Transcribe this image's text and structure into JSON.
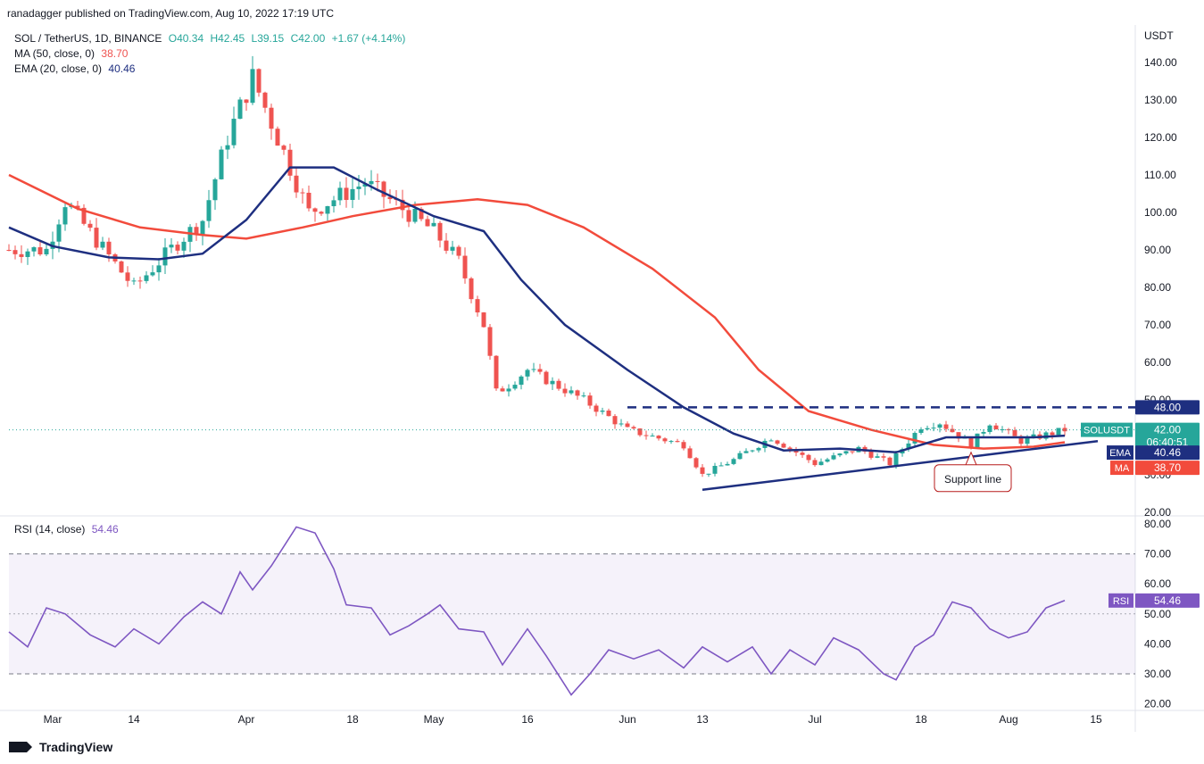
{
  "header": {
    "published": "ranadagger published on TradingView.com, Aug 10, 2022 17:19 UTC",
    "symbol": "SOL / TetherUS, 1D, BINANCE",
    "open": "O40.34",
    "high": "H42.45",
    "low": "L39.15",
    "close": "C42.00",
    "change": "+1.67 (+4.14%)",
    "ma_label": "MA (50, close, 0)",
    "ma_value": "38.70",
    "ema_label": "EMA (20, close, 0)",
    "ema_value": "40.46",
    "rsi_label": "RSI (14, close)",
    "rsi_value": "54.46"
  },
  "price_axis": {
    "unit": "USDT",
    "ticks": [
      "140.00",
      "130.00",
      "120.00",
      "110.00",
      "100.00",
      "90.00",
      "80.00",
      "70.00",
      "60.00",
      "50.00",
      "40.00",
      "30.00",
      "20.00"
    ]
  },
  "rsi_axis": {
    "ticks": [
      "80.00",
      "70.00",
      "60.00",
      "50.00",
      "40.00",
      "30.00",
      "20.00"
    ]
  },
  "date_axis": {
    "ticks": [
      "Mar",
      "14",
      "Apr",
      "18",
      "May",
      "16",
      "Jun",
      "13",
      "Jul",
      "18",
      "Aug",
      "15"
    ]
  },
  "badges": {
    "resistance": "48.00",
    "symbol": "SOLUSDT",
    "last": "42.00",
    "countdown": "06:40:51",
    "ema_tag": "EMA",
    "ema_val": "40.46",
    "ma_tag": "MA",
    "ma_val": "38.70",
    "rsi_tag": "RSI",
    "rsi_val": "54.46"
  },
  "annotation": {
    "support": "Support line"
  },
  "brand": {
    "name": "TradingView"
  },
  "colors": {
    "up": "#26a69a",
    "down": "#ef5350",
    "ema": "#1e2f80",
    "ma": "#f24b3c",
    "rsi": "#7e57c2",
    "resistance": "#1e2f80"
  },
  "chart_data": [
    {
      "type": "candlestick",
      "title": "SOL / TetherUS, 1D, BINANCE",
      "ylabel": "USDT",
      "ylim": [
        18,
        146
      ],
      "x_range": [
        "2022-02-22",
        "2022-08-21"
      ],
      "ohlc_key_points": [
        {
          "date": "2022-02-28",
          "close": 90
        },
        {
          "date": "2022-03-03",
          "close": 103
        },
        {
          "date": "2022-03-14",
          "close": 80
        },
        {
          "date": "2022-03-21",
          "close": 92
        },
        {
          "date": "2022-03-25",
          "close": 98
        },
        {
          "date": "2022-03-29",
          "close": 120
        },
        {
          "date": "2022-04-02",
          "close": 136
        },
        {
          "date": "2022-04-08",
          "close": 112
        },
        {
          "date": "2022-04-11",
          "close": 100
        },
        {
          "date": "2022-04-20",
          "close": 108
        },
        {
          "date": "2022-05-01",
          "close": 95
        },
        {
          "date": "2022-05-05",
          "close": 87
        },
        {
          "date": "2022-05-09",
          "close": 70
        },
        {
          "date": "2022-05-11",
          "close": 52
        },
        {
          "date": "2022-05-13",
          "close": 54
        },
        {
          "date": "2022-05-16",
          "close": 58
        },
        {
          "date": "2022-05-25",
          "close": 50
        },
        {
          "date": "2022-06-01",
          "close": 42
        },
        {
          "date": "2022-06-10",
          "close": 38
        },
        {
          "date": "2022-06-13",
          "close": 30
        },
        {
          "date": "2022-06-18",
          "close": 34
        },
        {
          "date": "2022-06-24",
          "close": 40
        },
        {
          "date": "2022-07-01",
          "close": 33
        },
        {
          "date": "2022-07-08",
          "close": 37
        },
        {
          "date": "2022-07-13",
          "close": 33
        },
        {
          "date": "2022-07-18",
          "close": 43
        },
        {
          "date": "2022-07-21",
          "close": 44
        },
        {
          "date": "2022-07-26",
          "close": 38
        },
        {
          "date": "2022-07-29",
          "close": 44
        },
        {
          "date": "2022-08-03",
          "close": 39
        },
        {
          "date": "2022-08-10",
          "close": 42
        }
      ],
      "series": [
        {
          "name": "EMA (20, close, 0)",
          "last": 40.46
        },
        {
          "name": "MA (50, close, 0)",
          "last": 38.7
        }
      ],
      "resistance": 48.0,
      "support_line": [
        {
          "date": "2022-06-13",
          "value": 26
        },
        {
          "date": "2022-08-11",
          "value": 39
        }
      ],
      "annotations": [
        "Support line"
      ]
    },
    {
      "type": "line",
      "title": "RSI (14, close)",
      "ylim": [
        18,
        82
      ],
      "bands": [
        30,
        70
      ],
      "midline": 50,
      "points": [
        {
          "date": "2022-02-22",
          "value": 44
        },
        {
          "date": "2022-02-25",
          "value": 39
        },
        {
          "date": "2022-02-28",
          "value": 52
        },
        {
          "date": "2022-03-03",
          "value": 50
        },
        {
          "date": "2022-03-07",
          "value": 43
        },
        {
          "date": "2022-03-11",
          "value": 39
        },
        {
          "date": "2022-03-14",
          "value": 45
        },
        {
          "date": "2022-03-18",
          "value": 40
        },
        {
          "date": "2022-03-22",
          "value": 49
        },
        {
          "date": "2022-03-25",
          "value": 54
        },
        {
          "date": "2022-03-28",
          "value": 50
        },
        {
          "date": "2022-03-31",
          "value": 64
        },
        {
          "date": "2022-04-02",
          "value": 58
        },
        {
          "date": "2022-04-05",
          "value": 66
        },
        {
          "date": "2022-04-09",
          "value": 79
        },
        {
          "date": "2022-04-12",
          "value": 77
        },
        {
          "date": "2022-04-15",
          "value": 65
        },
        {
          "date": "2022-04-17",
          "value": 53
        },
        {
          "date": "2022-04-21",
          "value": 52
        },
        {
          "date": "2022-04-24",
          "value": 43
        },
        {
          "date": "2022-04-27",
          "value": 46
        },
        {
          "date": "2022-04-30",
          "value": 50
        },
        {
          "date": "2022-05-02",
          "value": 53
        },
        {
          "date": "2022-05-05",
          "value": 45
        },
        {
          "date": "2022-05-09",
          "value": 44
        },
        {
          "date": "2022-05-12",
          "value": 33
        },
        {
          "date": "2022-05-16",
          "value": 45
        },
        {
          "date": "2022-05-19",
          "value": 36
        },
        {
          "date": "2022-05-23",
          "value": 23
        },
        {
          "date": "2022-05-26",
          "value": 30
        },
        {
          "date": "2022-05-29",
          "value": 38
        },
        {
          "date": "2022-06-02",
          "value": 35
        },
        {
          "date": "2022-06-06",
          "value": 38
        },
        {
          "date": "2022-06-10",
          "value": 32
        },
        {
          "date": "2022-06-13",
          "value": 39
        },
        {
          "date": "2022-06-17",
          "value": 34
        },
        {
          "date": "2022-06-21",
          "value": 39
        },
        {
          "date": "2022-06-24",
          "value": 30
        },
        {
          "date": "2022-06-27",
          "value": 38
        },
        {
          "date": "2022-07-01",
          "value": 33
        },
        {
          "date": "2022-07-04",
          "value": 42
        },
        {
          "date": "2022-07-08",
          "value": 38
        },
        {
          "date": "2022-07-12",
          "value": 30
        },
        {
          "date": "2022-07-14",
          "value": 28
        },
        {
          "date": "2022-07-17",
          "value": 39
        },
        {
          "date": "2022-07-20",
          "value": 43
        },
        {
          "date": "2022-07-23",
          "value": 54
        },
        {
          "date": "2022-07-26",
          "value": 52
        },
        {
          "date": "2022-07-29",
          "value": 45
        },
        {
          "date": "2022-08-01",
          "value": 42
        },
        {
          "date": "2022-08-04",
          "value": 44
        },
        {
          "date": "2022-08-07",
          "value": 52
        },
        {
          "date": "2022-08-10",
          "value": 54.46
        }
      ]
    }
  ]
}
